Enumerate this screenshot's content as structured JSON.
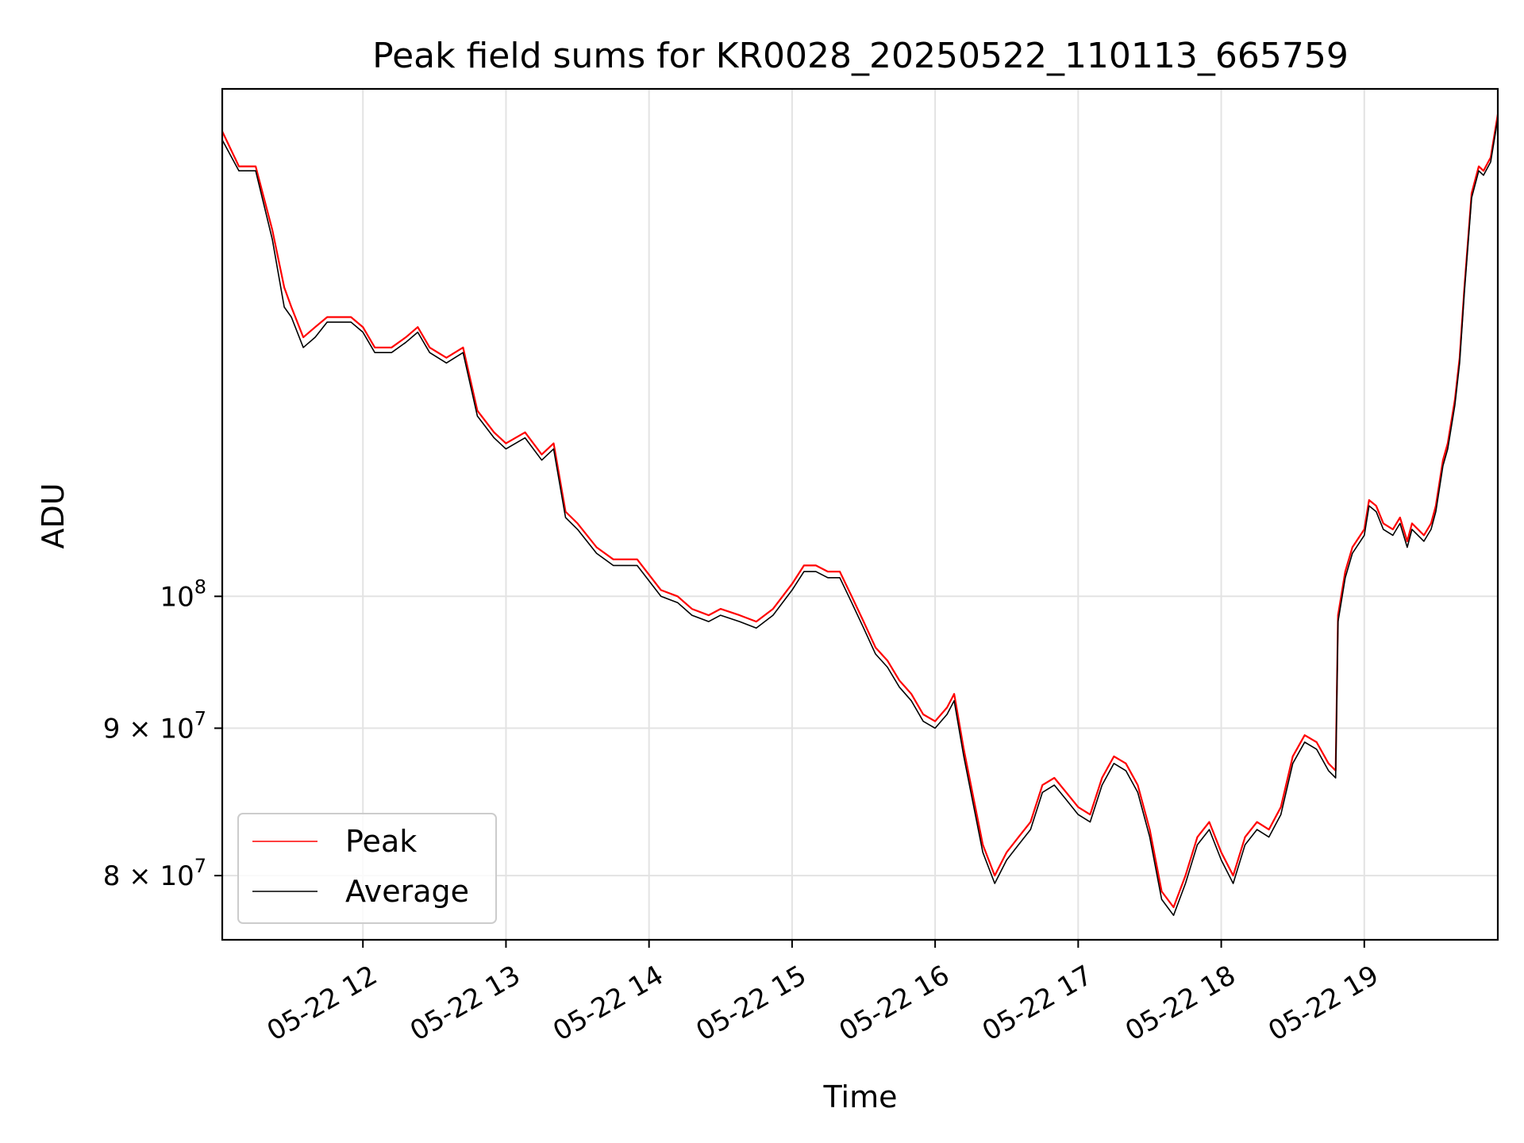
{
  "chart_data": {
    "type": "line",
    "title": "Peak field sums for KR0028_20250522_110113_665759",
    "xlabel": "Time",
    "ylabel": "ADU",
    "yscale": "log",
    "ylim": [
      76000000,
      150000000
    ],
    "xlim": [
      "2025-05-22 11:01",
      "2025-05-22 19:56"
    ],
    "grid": true,
    "legend_position": "lower-left",
    "x_ticks": [
      {
        "label": "05-22 12",
        "value": "2025-05-22 12:00"
      },
      {
        "label": "05-22 13",
        "value": "2025-05-22 13:00"
      },
      {
        "label": "05-22 14",
        "value": "2025-05-22 14:00"
      },
      {
        "label": "05-22 15",
        "value": "2025-05-22 15:00"
      },
      {
        "label": "05-22 16",
        "value": "2025-05-22 16:00"
      },
      {
        "label": "05-22 17",
        "value": "2025-05-22 17:00"
      },
      {
        "label": "05-22 18",
        "value": "2025-05-22 18:00"
      },
      {
        "label": "05-22 19",
        "value": "2025-05-22 19:00"
      }
    ],
    "y_ticks": [
      {
        "base": "8",
        "mantissa": "× 10",
        "exp": "7",
        "value": 80000000,
        "label": "8 × 10^7"
      },
      {
        "base": "9",
        "mantissa": "× 10",
        "exp": "7",
        "value": 90000000,
        "label": "9 × 10^7"
      },
      {
        "base": "",
        "mantissa": "10",
        "exp": "8",
        "value": 100000000,
        "label": "10^8"
      }
    ],
    "x": [
      "2025-05-22 11:01",
      "2025-05-22 11:08",
      "2025-05-22 11:15",
      "2025-05-22 11:22",
      "2025-05-22 11:27",
      "2025-05-22 11:30",
      "2025-05-22 11:35",
      "2025-05-22 11:40",
      "2025-05-22 11:45",
      "2025-05-22 11:50",
      "2025-05-22 11:55",
      "2025-05-22 12:00",
      "2025-05-22 12:05",
      "2025-05-22 12:12",
      "2025-05-22 12:18",
      "2025-05-22 12:23",
      "2025-05-22 12:28",
      "2025-05-22 12:35",
      "2025-05-22 12:42",
      "2025-05-22 12:48",
      "2025-05-22 12:55",
      "2025-05-22 13:00",
      "2025-05-22 13:08",
      "2025-05-22 13:15",
      "2025-05-22 13:20",
      "2025-05-22 13:25",
      "2025-05-22 13:30",
      "2025-05-22 13:38",
      "2025-05-22 13:45",
      "2025-05-22 13:55",
      "2025-05-22 14:05",
      "2025-05-22 14:12",
      "2025-05-22 14:18",
      "2025-05-22 14:25",
      "2025-05-22 14:30",
      "2025-05-22 14:38",
      "2025-05-22 14:45",
      "2025-05-22 14:52",
      "2025-05-22 15:00",
      "2025-05-22 15:05",
      "2025-05-22 15:10",
      "2025-05-22 15:15",
      "2025-05-22 15:20",
      "2025-05-22 15:25",
      "2025-05-22 15:30",
      "2025-05-22 15:35",
      "2025-05-22 15:40",
      "2025-05-22 15:45",
      "2025-05-22 15:50",
      "2025-05-22 15:55",
      "2025-05-22 16:00",
      "2025-05-22 16:05",
      "2025-05-22 16:08",
      "2025-05-22 16:12",
      "2025-05-22 16:15",
      "2025-05-22 16:20",
      "2025-05-22 16:25",
      "2025-05-22 16:30",
      "2025-05-22 16:35",
      "2025-05-22 16:40",
      "2025-05-22 16:45",
      "2025-05-22 16:50",
      "2025-05-22 16:55",
      "2025-05-22 17:00",
      "2025-05-22 17:05",
      "2025-05-22 17:10",
      "2025-05-22 17:15",
      "2025-05-22 17:20",
      "2025-05-22 17:25",
      "2025-05-22 17:30",
      "2025-05-22 17:35",
      "2025-05-22 17:40",
      "2025-05-22 17:45",
      "2025-05-22 17:50",
      "2025-05-22 17:55",
      "2025-05-22 18:00",
      "2025-05-22 18:05",
      "2025-05-22 18:10",
      "2025-05-22 18:15",
      "2025-05-22 18:20",
      "2025-05-22 18:25",
      "2025-05-22 18:30",
      "2025-05-22 18:35",
      "2025-05-22 18:40",
      "2025-05-22 18:45",
      "2025-05-22 18:48",
      "2025-05-22 18:49",
      "2025-05-22 18:52",
      "2025-05-22 18:55",
      "2025-05-22 19:00",
      "2025-05-22 19:02",
      "2025-05-22 19:05",
      "2025-05-22 19:08",
      "2025-05-22 19:12",
      "2025-05-22 19:15",
      "2025-05-22 19:18",
      "2025-05-22 19:20",
      "2025-05-22 19:25",
      "2025-05-22 19:28",
      "2025-05-22 19:30",
      "2025-05-22 19:33",
      "2025-05-22 19:35",
      "2025-05-22 19:38",
      "2025-05-22 19:40",
      "2025-05-22 19:42",
      "2025-05-22 19:45",
      "2025-05-22 19:48",
      "2025-05-22 19:50",
      "2025-05-22 19:53",
      "2025-05-22 19:56"
    ],
    "series": [
      {
        "name": "Peak",
        "color": "#ff0000",
        "values": [
          145000000,
          141000000,
          141000000,
          134000000,
          128000000,
          126000000,
          123000000,
          124000000,
          125000000,
          125000000,
          125000000,
          124000000,
          122000000,
          122000000,
          123000000,
          124000000,
          122000000,
          121000000,
          122000000,
          116000000,
          114000000,
          113000000,
          114000000,
          112000000,
          113000000,
          107000000,
          106000000,
          104000000,
          103000000,
          103000000,
          100500000,
          100000000,
          99000000,
          98500000,
          99000000,
          98500000,
          98000000,
          99000000,
          101000000,
          102500000,
          102500000,
          102000000,
          102000000,
          100000000,
          98000000,
          96000000,
          95000000,
          93500000,
          92500000,
          91000000,
          90500000,
          91500000,
          92500000,
          88500000,
          86000000,
          82000000,
          80000000,
          81500000,
          82500000,
          83500000,
          86000000,
          86500000,
          85500000,
          84500000,
          84000000,
          86500000,
          88000000,
          87500000,
          86000000,
          83000000,
          79000000,
          78000000,
          80000000,
          82500000,
          83500000,
          81500000,
          80000000,
          82500000,
          83500000,
          83000000,
          84500000,
          88000000,
          89500000,
          89000000,
          87500000,
          87000000,
          98500000,
          102000000,
          104000000,
          105500000,
          108000000,
          107500000,
          106000000,
          105500000,
          106500000,
          104500000,
          106000000,
          105000000,
          106000000,
          107500000,
          111500000,
          113000000,
          117000000,
          121000000,
          128000000,
          138000000,
          141000000,
          140500000,
          142000000,
          147000000
        ]
      },
      {
        "name": "Average",
        "color": "#000000",
        "values": [
          144000000,
          140500000,
          140500000,
          133000000,
          126000000,
          125000000,
          122000000,
          123000000,
          124500000,
          124500000,
          124500000,
          123500000,
          121500000,
          121500000,
          122500000,
          123500000,
          121500000,
          120500000,
          121500000,
          115500000,
          113500000,
          112500000,
          113500000,
          111500000,
          112500000,
          106500000,
          105500000,
          103500000,
          102500000,
          102500000,
          100000000,
          99500000,
          98500000,
          98000000,
          98500000,
          98000000,
          97500000,
          98500000,
          100500000,
          102000000,
          102000000,
          101500000,
          101500000,
          99500000,
          97500000,
          95500000,
          94500000,
          93000000,
          92000000,
          90500000,
          90000000,
          91000000,
          92000000,
          88000000,
          85500000,
          81500000,
          79500000,
          81000000,
          82000000,
          83000000,
          85500000,
          86000000,
          85000000,
          84000000,
          83500000,
          86000000,
          87500000,
          87000000,
          85500000,
          82500000,
          78500000,
          77500000,
          79500000,
          82000000,
          83000000,
          81000000,
          79500000,
          82000000,
          83000000,
          82500000,
          84000000,
          87500000,
          89000000,
          88500000,
          87000000,
          86500000,
          98000000,
          101500000,
          103500000,
          105000000,
          107500000,
          107000000,
          105500000,
          105000000,
          106000000,
          104000000,
          105500000,
          104500000,
          105500000,
          107000000,
          111000000,
          112500000,
          116500000,
          120500000,
          127500000,
          137500000,
          140500000,
          140000000,
          141500000,
          146500000
        ]
      }
    ]
  }
}
